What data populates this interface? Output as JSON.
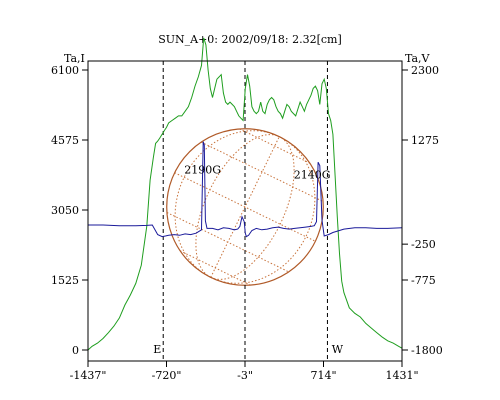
{
  "chart_data": {
    "type": "line",
    "title": "SUN_A+0: 2002/09/18: 2.32[cm]",
    "y_left_label": "Ta,I",
    "y_right_label": "Ta,V",
    "xlim": [
      -1437,
      1431
    ],
    "ylim_left": [
      0,
      6100
    ],
    "ylim_right": [
      -1800,
      2300
    ],
    "x_ticks": [
      {
        "value": -1437,
        "label": "-1437\""
      },
      {
        "value": -720,
        "label": "-720\""
      },
      {
        "value": -3,
        "label": "-3\""
      },
      {
        "value": 714,
        "label": "714\""
      },
      {
        "value": 1431,
        "label": "1431\""
      }
    ],
    "y_left_ticks": [
      {
        "value": 0,
        "label": "0"
      },
      {
        "value": 1525,
        "label": "1525"
      },
      {
        "value": 3050,
        "label": "3050"
      },
      {
        "value": 4575,
        "label": "4575"
      },
      {
        "value": 6100,
        "label": "6100"
      }
    ],
    "y_right_ticks": [
      {
        "value": -1800,
        "label": "-1800"
      },
      {
        "value": -775,
        "label": "-775"
      },
      {
        "value": -250,
        "label": "-250"
      },
      {
        "value": 1275,
        "label": "1275"
      },
      {
        "value": 2300,
        "label": "2300"
      }
    ],
    "limb_markers": [
      {
        "x": -750,
        "label": "E"
      },
      {
        "x": -3,
        "label": ""
      },
      {
        "x": 750,
        "label": "W"
      }
    ],
    "annotations": [
      {
        "x": -390,
        "y": 3840,
        "label": "2190G"
      },
      {
        "x": 610,
        "y": 3740,
        "label": "2140G"
      }
    ],
    "disk": {
      "cx": -3,
      "radius_arcsec": 715,
      "colors": {
        "limb": "#b05a28",
        "grid": "#c8733c"
      }
    },
    "series": [
      {
        "axis": "left",
        "color": "#1f9e1f",
        "x": [
          -1437,
          -1400,
          -1350,
          -1300,
          -1250,
          -1200,
          -1150,
          -1100,
          -1050,
          -1000,
          -950,
          -900,
          -870,
          -840,
          -820,
          -800,
          -780,
          -760,
          -740,
          -720,
          -700,
          -670,
          -640,
          -610,
          -580,
          -550,
          -520,
          -490,
          -460,
          -430,
          -400,
          -380,
          -360,
          -340,
          -320,
          -300,
          -280,
          -260,
          -240,
          -220,
          -200,
          -180,
          -160,
          -140,
          -120,
          -100,
          -80,
          -60,
          -40,
          -20,
          0,
          20,
          40,
          60,
          80,
          100,
          120,
          140,
          160,
          180,
          200,
          220,
          240,
          260,
          280,
          300,
          320,
          340,
          360,
          380,
          400,
          420,
          440,
          460,
          480,
          500,
          520,
          540,
          560,
          580,
          600,
          620,
          640,
          660,
          680,
          700,
          720,
          740,
          760,
          780,
          800,
          820,
          840,
          860,
          880,
          900,
          950,
          1000,
          1050,
          1100,
          1150,
          1200,
          1250,
          1300,
          1350,
          1400,
          1431
        ],
        "y": [
          0,
          80,
          150,
          250,
          380,
          520,
          700,
          980,
          1200,
          1450,
          1850,
          2700,
          3700,
          4200,
          4500,
          4550,
          4620,
          4700,
          4780,
          4850,
          4950,
          5000,
          5050,
          5100,
          5100,
          5200,
          5300,
          5500,
          5750,
          5950,
          6200,
          6800,
          6650,
          6100,
          5700,
          5500,
          5700,
          5900,
          5950,
          6000,
          5600,
          5400,
          5350,
          5400,
          5350,
          5300,
          5200,
          5100,
          5050,
          5000,
          5700,
          6000,
          5750,
          5300,
          5200,
          5150,
          5200,
          5400,
          5200,
          5150,
          5350,
          5450,
          5500,
          5450,
          5300,
          5200,
          5150,
          5050,
          5200,
          5350,
          5300,
          5200,
          5150,
          5100,
          5250,
          5400,
          5300,
          5200,
          5350,
          5450,
          5550,
          5700,
          5750,
          5650,
          5350,
          5800,
          5900,
          5700,
          5150,
          5000,
          4700,
          3800,
          2900,
          2100,
          1500,
          1250,
          920,
          800,
          720,
          580,
          480,
          380,
          280,
          200,
          150,
          80,
          40
        ]
      },
      {
        "axis": "right",
        "color": "#1a1a9a",
        "x": [
          -1437,
          -1300,
          -1150,
          -1000,
          -900,
          -850,
          -800,
          -760,
          -730,
          -700,
          -650,
          -600,
          -550,
          -500,
          -450,
          -420,
          -400,
          -385,
          -375,
          -365,
          -350,
          -300,
          -250,
          -200,
          -150,
          -100,
          -70,
          -50,
          -30,
          -10,
          0,
          10,
          30,
          60,
          100,
          150,
          200,
          250,
          300,
          350,
          400,
          450,
          500,
          550,
          600,
          630,
          650,
          665,
          680,
          700,
          720,
          760,
          800,
          900,
          1000,
          1100,
          1200,
          1300,
          1431
        ],
        "y": [
          30,
          30,
          20,
          20,
          25,
          30,
          -110,
          -140,
          -130,
          -120,
          -110,
          -120,
          -100,
          -110,
          -90,
          -60,
          -40,
          1250,
          1200,
          90,
          -20,
          -20,
          -40,
          -10,
          -20,
          -40,
          -30,
          10,
          150,
          80,
          -90,
          -140,
          -120,
          -50,
          -20,
          -40,
          -30,
          -10,
          0,
          -20,
          -30,
          -20,
          -10,
          0,
          10,
          20,
          80,
          950,
          900,
          100,
          -130,
          -110,
          -80,
          -30,
          -10,
          -10,
          -20,
          -20,
          -10
        ]
      }
    ]
  }
}
